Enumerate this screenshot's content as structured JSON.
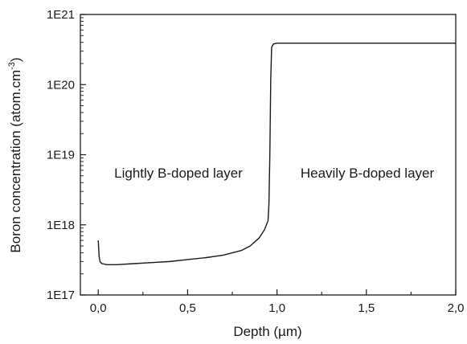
{
  "chart_data": {
    "type": "line",
    "title": "",
    "xlabel": "Depth (µm)",
    "ylabel": "Boron concentration (atom.cm",
    "ylabel_exponent": "-3",
    "ylabel_close": ")",
    "x_scale": "linear",
    "y_scale": "log",
    "xlim": [
      -0.1,
      2.0
    ],
    "ylim": [
      1e+17,
      1e+21
    ],
    "x_ticks": [
      0.0,
      0.5,
      1.0,
      1.5,
      2.0
    ],
    "x_tick_labels": [
      "0,0",
      "0,5",
      "1,0",
      "1,5",
      "2,0"
    ],
    "y_ticks": [
      1e+17,
      1e+18,
      1e+19,
      1e+20,
      1e+21
    ],
    "y_tick_labels": [
      "1E17",
      "1E18",
      "1E19",
      "1E20",
      "1E21"
    ],
    "grid": false,
    "legend": "none",
    "line_color": "#1a1a1a",
    "annotations": [
      {
        "text": "Lightly B-doped layer",
        "x": 0.43,
        "y": 1.1e+19
      },
      {
        "text": "Heavily B-doped layer",
        "x": 1.5,
        "y": 1.1e+19
      }
    ],
    "series": [
      {
        "x": [
          0.0,
          0.005,
          0.01,
          0.02,
          0.05,
          0.1,
          0.2,
          0.3,
          0.4,
          0.5,
          0.6,
          0.7,
          0.8,
          0.85,
          0.9,
          0.93,
          0.95,
          0.955,
          0.96,
          0.965,
          0.97,
          0.98,
          1.0,
          1.1,
          1.2,
          1.3,
          1.4,
          1.5,
          1.6,
          1.7,
          1.8,
          1.9,
          2.0
        ],
        "y": [
          6e+17,
          3.5e+17,
          3e+17,
          2.8e+17,
          2.7e+17,
          2.7e+17,
          2.8e+17,
          2.9e+17,
          3e+17,
          3.2e+17,
          3.4e+17,
          3.7e+17,
          4.3e+17,
          5e+17,
          6.5e+17,
          8.5e+17,
          1.15e+18,
          2e+18,
          1e+19,
          1.2e+20,
          3.4e+20,
          3.8e+20,
          3.9e+20,
          3.9e+20,
          3.9e+20,
          3.9e+20,
          3.9e+20,
          3.9e+20,
          3.9e+20,
          3.9e+20,
          3.9e+20,
          3.9e+20,
          3.9e+20
        ]
      }
    ]
  }
}
